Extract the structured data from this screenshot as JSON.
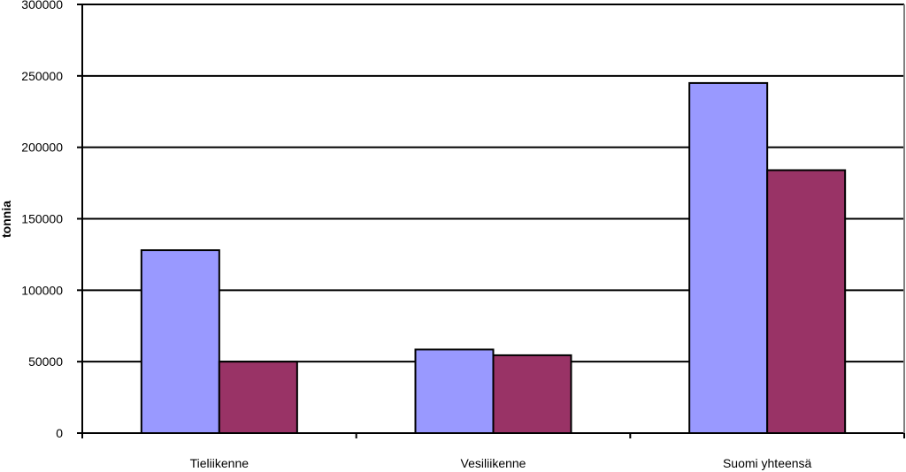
{
  "chart_data": {
    "type": "bar",
    "title": "",
    "xlabel": "",
    "ylabel": "tonnia",
    "categories": [
      "Tieliikenne",
      "Vesiliikenne",
      "Suomi yhteensä"
    ],
    "series": [
      {
        "values": [
          128000,
          58500,
          245000
        ],
        "color": "#9999ff"
      },
      {
        "values": [
          50000,
          54500,
          184000
        ],
        "color": "#993366"
      }
    ],
    "ylim": [
      0,
      300000
    ],
    "yticks": [
      0,
      50000,
      100000,
      150000,
      200000,
      250000,
      300000
    ],
    "grid": true,
    "legend": "none"
  }
}
